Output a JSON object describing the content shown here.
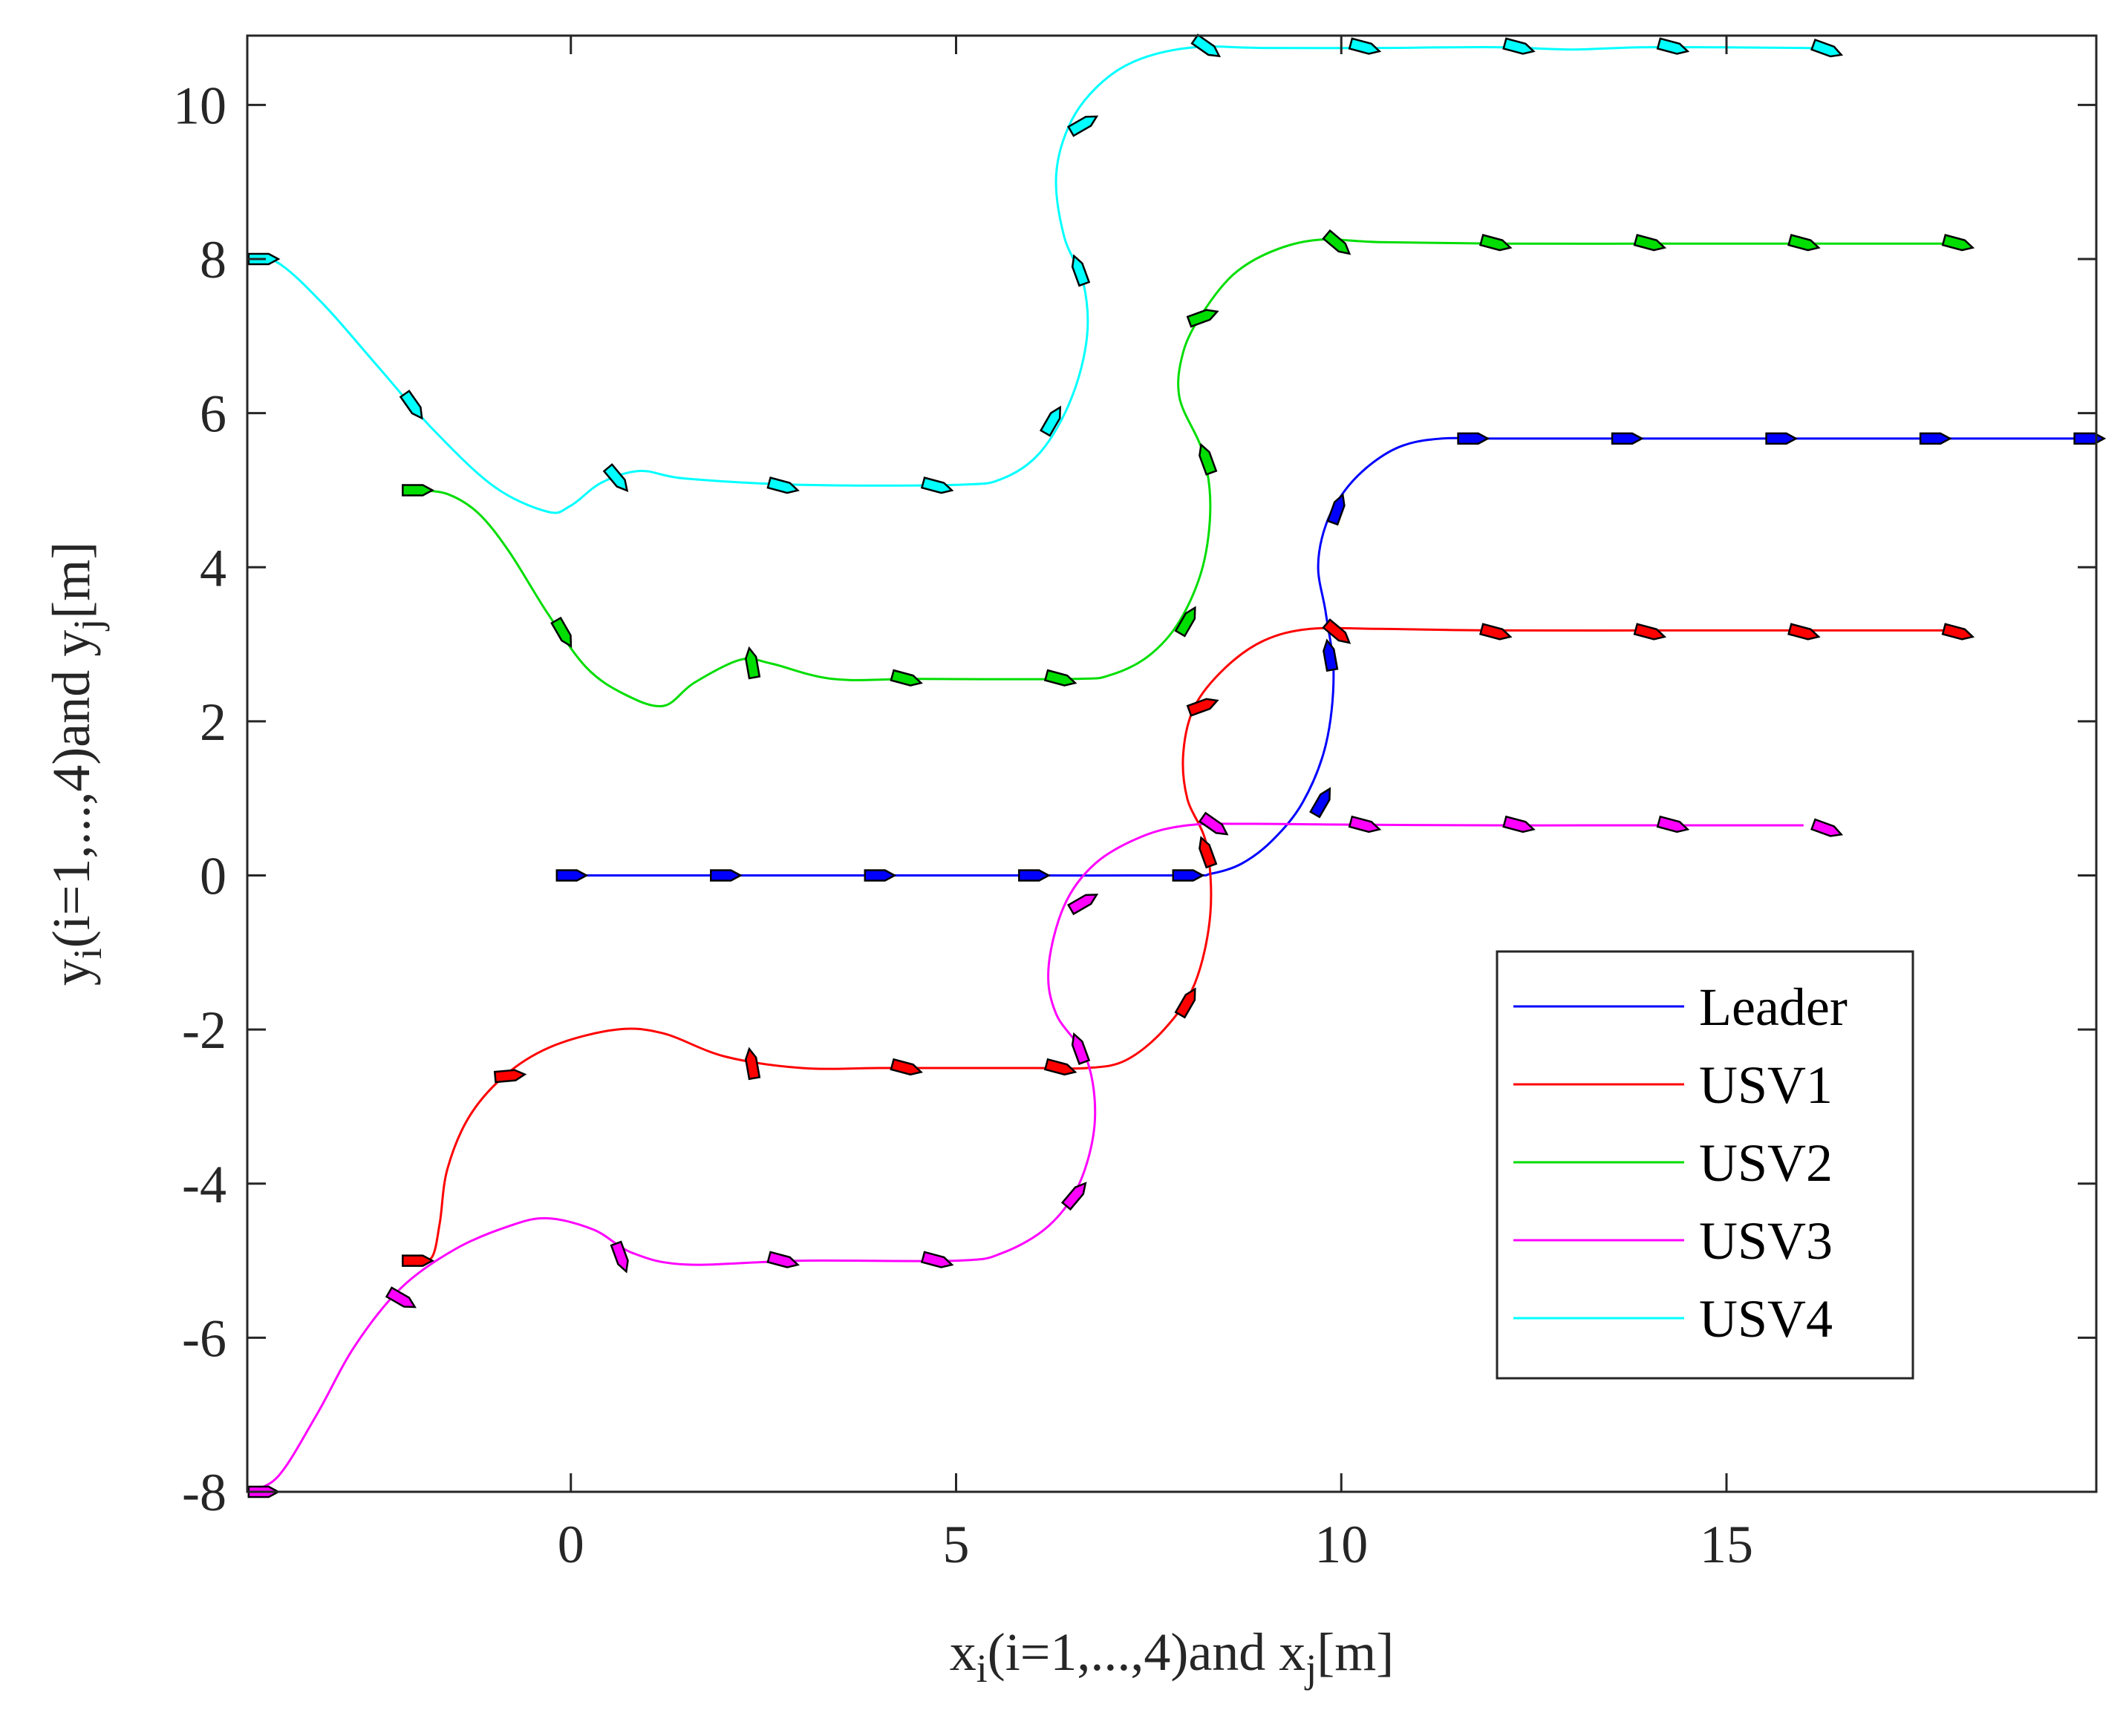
{
  "chart_data": {
    "type": "line",
    "title": "",
    "xlabel": {
      "main": "x",
      "sub1": "i",
      "mid": "(i=1,...,4)and x",
      "sub2": "j",
      "end": "[m]"
    },
    "ylabel": {
      "main": "y",
      "sub1": "i",
      "mid": "(i=1,...,4)and y",
      "sub2": "j",
      "end": "[m]"
    },
    "xlim": [
      -4.2,
      19.8
    ],
    "ylim": [
      -8,
      10.9
    ],
    "xticks": [
      0,
      5,
      10,
      15
    ],
    "yticks": [
      -8,
      -6,
      -4,
      -2,
      0,
      2,
      4,
      6,
      8,
      10
    ],
    "xtick_labels": [
      "0",
      "5",
      "10",
      "15"
    ],
    "ytick_labels": [
      "-8",
      "-6",
      "-4",
      "-2",
      "0",
      "2",
      "4",
      "6",
      "8",
      "10"
    ],
    "grid": false,
    "legend_position": "bottom-right",
    "series": [
      {
        "name": "Leader",
        "color": "#0000ff",
        "points": [
          [
            0,
            0
          ],
          [
            2,
            0
          ],
          [
            4,
            0
          ],
          [
            6,
            0
          ],
          [
            8,
            0
          ],
          [
            8.3,
            0.02
          ],
          [
            8.7,
            0.15
          ],
          [
            9.1,
            0.45
          ],
          [
            9.5,
            0.95
          ],
          [
            9.8,
            1.7
          ],
          [
            9.9,
            2.6
          ],
          [
            9.8,
            3.4
          ],
          [
            9.7,
            4.0
          ],
          [
            9.8,
            4.55
          ],
          [
            10.05,
            5.0
          ],
          [
            10.4,
            5.35
          ],
          [
            10.8,
            5.58
          ],
          [
            11.3,
            5.67
          ],
          [
            12,
            5.67
          ],
          [
            14,
            5.67
          ],
          [
            16,
            5.67
          ],
          [
            18,
            5.67
          ],
          [
            19.8,
            5.67
          ]
        ],
        "markers": [
          [
            0,
            0,
            0
          ],
          [
            2,
            0,
            0
          ],
          [
            4,
            0,
            0
          ],
          [
            6,
            0,
            0
          ],
          [
            8,
            0,
            0
          ],
          [
            9.75,
            0.95,
            -60
          ],
          [
            9.85,
            2.85,
            -100
          ],
          [
            9.95,
            4.75,
            -70
          ],
          [
            11.7,
            5.67,
            0
          ],
          [
            13.7,
            5.67,
            0
          ],
          [
            15.7,
            5.67,
            0
          ],
          [
            17.7,
            5.67,
            0
          ],
          [
            19.7,
            5.67,
            0
          ]
        ]
      },
      {
        "name": "USV1",
        "color": "#ff0000",
        "points": [
          [
            -2,
            -5
          ],
          [
            -1.8,
            -4.95
          ],
          [
            -1.7,
            -4.5
          ],
          [
            -1.6,
            -3.8
          ],
          [
            -1.3,
            -3.1
          ],
          [
            -0.8,
            -2.55
          ],
          [
            -0.2,
            -2.2
          ],
          [
            0.6,
            -2.0
          ],
          [
            1.2,
            -2.05
          ],
          [
            2,
            -2.35
          ],
          [
            3,
            -2.5
          ],
          [
            4,
            -2.5
          ],
          [
            5,
            -2.5
          ],
          [
            6,
            -2.5
          ],
          [
            6.7,
            -2.5
          ],
          [
            7.2,
            -2.4
          ],
          [
            7.7,
            -2.0
          ],
          [
            8.1,
            -1.4
          ],
          [
            8.3,
            -0.5
          ],
          [
            8.25,
            0.4
          ],
          [
            8.0,
            1.0
          ],
          [
            7.95,
            1.6
          ],
          [
            8.1,
            2.2
          ],
          [
            8.5,
            2.7
          ],
          [
            9,
            3.05
          ],
          [
            9.6,
            3.2
          ],
          [
            10.5,
            3.2
          ],
          [
            12,
            3.18
          ],
          [
            14,
            3.18
          ],
          [
            16,
            3.18
          ],
          [
            18,
            3.18
          ]
        ],
        "markers": [
          [
            -2,
            -5,
            0
          ],
          [
            -0.8,
            -2.6,
            -5
          ],
          [
            2.35,
            -2.45,
            -100
          ],
          [
            4.35,
            -2.5,
            15
          ],
          [
            6.35,
            -2.5,
            15
          ],
          [
            8.0,
            -1.65,
            -60
          ],
          [
            8.25,
            0.3,
            -110
          ],
          [
            8.2,
            2.2,
            -20
          ],
          [
            9.95,
            3.15,
            40
          ],
          [
            12,
            3.15,
            15
          ],
          [
            14,
            3.15,
            15
          ],
          [
            16,
            3.15,
            15
          ],
          [
            18,
            3.15,
            15
          ]
        ]
      },
      {
        "name": "USV2",
        "color": "#00dd00",
        "points": [
          [
            -2,
            5
          ],
          [
            -1.6,
            4.95
          ],
          [
            -1.2,
            4.7
          ],
          [
            -0.8,
            4.2
          ],
          [
            -0.3,
            3.4
          ],
          [
            0.2,
            2.7
          ],
          [
            0.7,
            2.35
          ],
          [
            1.2,
            2.2
          ],
          [
            1.6,
            2.5
          ],
          [
            2.2,
            2.8
          ],
          [
            2.6,
            2.75
          ],
          [
            3.4,
            2.55
          ],
          [
            4.5,
            2.55
          ],
          [
            6.5,
            2.55
          ],
          [
            7,
            2.6
          ],
          [
            7.5,
            2.85
          ],
          [
            7.9,
            3.3
          ],
          [
            8.2,
            4.0
          ],
          [
            8.3,
            4.8
          ],
          [
            8.2,
            5.5
          ],
          [
            7.9,
            6.2
          ],
          [
            7.95,
            6.8
          ],
          [
            8.2,
            7.3
          ],
          [
            8.6,
            7.8
          ],
          [
            9.1,
            8.1
          ],
          [
            9.7,
            8.25
          ],
          [
            10.5,
            8.22
          ],
          [
            12,
            8.2
          ],
          [
            14,
            8.2
          ],
          [
            16,
            8.2
          ],
          [
            18,
            8.2
          ]
        ],
        "markers": [
          [
            -2,
            5,
            0
          ],
          [
            -0.1,
            3.15,
            60
          ],
          [
            2.35,
            2.75,
            -100
          ],
          [
            4.35,
            2.55,
            15
          ],
          [
            6.35,
            2.55,
            15
          ],
          [
            8.0,
            3.3,
            -60
          ],
          [
            8.25,
            5.4,
            -110
          ],
          [
            8.2,
            7.25,
            -20
          ],
          [
            9.95,
            8.2,
            40
          ],
          [
            12,
            8.2,
            15
          ],
          [
            14,
            8.2,
            15
          ],
          [
            16,
            8.2,
            15
          ],
          [
            18,
            8.2,
            15
          ]
        ]
      },
      {
        "name": "USV3",
        "color": "#ff00ff",
        "points": [
          [
            -4.2,
            -8
          ],
          [
            -3.8,
            -7.8
          ],
          [
            -3.3,
            -7.0
          ],
          [
            -2.8,
            -6.1
          ],
          [
            -2.2,
            -5.35
          ],
          [
            -1.5,
            -4.85
          ],
          [
            -0.8,
            -4.55
          ],
          [
            -0.3,
            -4.45
          ],
          [
            0.3,
            -4.6
          ],
          [
            0.8,
            -4.9
          ],
          [
            1.5,
            -5.05
          ],
          [
            3,
            -5
          ],
          [
            5,
            -5
          ],
          [
            5.6,
            -4.9
          ],
          [
            6.2,
            -4.55
          ],
          [
            6.6,
            -4.0
          ],
          [
            6.8,
            -3.2
          ],
          [
            6.7,
            -2.4
          ],
          [
            6.3,
            -1.8
          ],
          [
            6.2,
            -1.2
          ],
          [
            6.4,
            -0.4
          ],
          [
            6.8,
            0.15
          ],
          [
            7.4,
            0.5
          ],
          [
            8,
            0.65
          ],
          [
            8.8,
            0.67
          ],
          [
            10,
            0.66
          ],
          [
            12,
            0.65
          ],
          [
            14,
            0.65
          ],
          [
            16,
            0.65
          ]
        ],
        "markers": [
          [
            -4.0,
            -8,
            0
          ],
          [
            -2.2,
            -5.5,
            30
          ],
          [
            0.65,
            -4.95,
            70
          ],
          [
            2.75,
            -5.0,
            15
          ],
          [
            4.75,
            -5.0,
            15
          ],
          [
            6.55,
            -4.15,
            -50
          ],
          [
            6.6,
            -2.25,
            -110
          ],
          [
            6.65,
            -0.35,
            -30
          ],
          [
            8.35,
            0.65,
            35
          ],
          [
            10.3,
            0.65,
            15
          ],
          [
            12.3,
            0.65,
            15
          ],
          [
            14.3,
            0.65,
            15
          ],
          [
            16.3,
            0.6,
            20
          ]
        ]
      },
      {
        "name": "USV4",
        "color": "#00ffff",
        "points": [
          [
            -4.2,
            8
          ],
          [
            -3.8,
            7.95
          ],
          [
            -3.2,
            7.4
          ],
          [
            -2.5,
            6.6
          ],
          [
            -1.8,
            5.8
          ],
          [
            -1,
            5.05
          ],
          [
            -0.3,
            4.72
          ],
          [
            0,
            4.8
          ],
          [
            0.4,
            5.1
          ],
          [
            0.9,
            5.25
          ],
          [
            1.5,
            5.15
          ],
          [
            3,
            5.07
          ],
          [
            5,
            5.07
          ],
          [
            5.6,
            5.15
          ],
          [
            6.1,
            5.5
          ],
          [
            6.5,
            6.2
          ],
          [
            6.7,
            7.0
          ],
          [
            6.65,
            7.7
          ],
          [
            6.4,
            8.3
          ],
          [
            6.3,
            9.1
          ],
          [
            6.5,
            9.8
          ],
          [
            6.9,
            10.3
          ],
          [
            7.4,
            10.6
          ],
          [
            8.1,
            10.75
          ],
          [
            9,
            10.74
          ],
          [
            10.5,
            10.74
          ],
          [
            12,
            10.75
          ],
          [
            13,
            10.72
          ],
          [
            14,
            10.75
          ],
          [
            16,
            10.74
          ],
          [
            16.4,
            10.72
          ]
        ],
        "markers": [
          [
            -4.0,
            8,
            0
          ],
          [
            -2.05,
            6.1,
            55
          ],
          [
            0.6,
            5.15,
            50
          ],
          [
            2.75,
            5.05,
            15
          ],
          [
            4.75,
            5.05,
            15
          ],
          [
            6.25,
            5.9,
            -60
          ],
          [
            6.6,
            7.85,
            -110
          ],
          [
            6.65,
            9.75,
            -30
          ],
          [
            8.25,
            10.75,
            35
          ],
          [
            10.3,
            10.75,
            15
          ],
          [
            12.3,
            10.75,
            15
          ],
          [
            14.3,
            10.75,
            15
          ],
          [
            16.3,
            10.72,
            20
          ]
        ]
      }
    ]
  }
}
